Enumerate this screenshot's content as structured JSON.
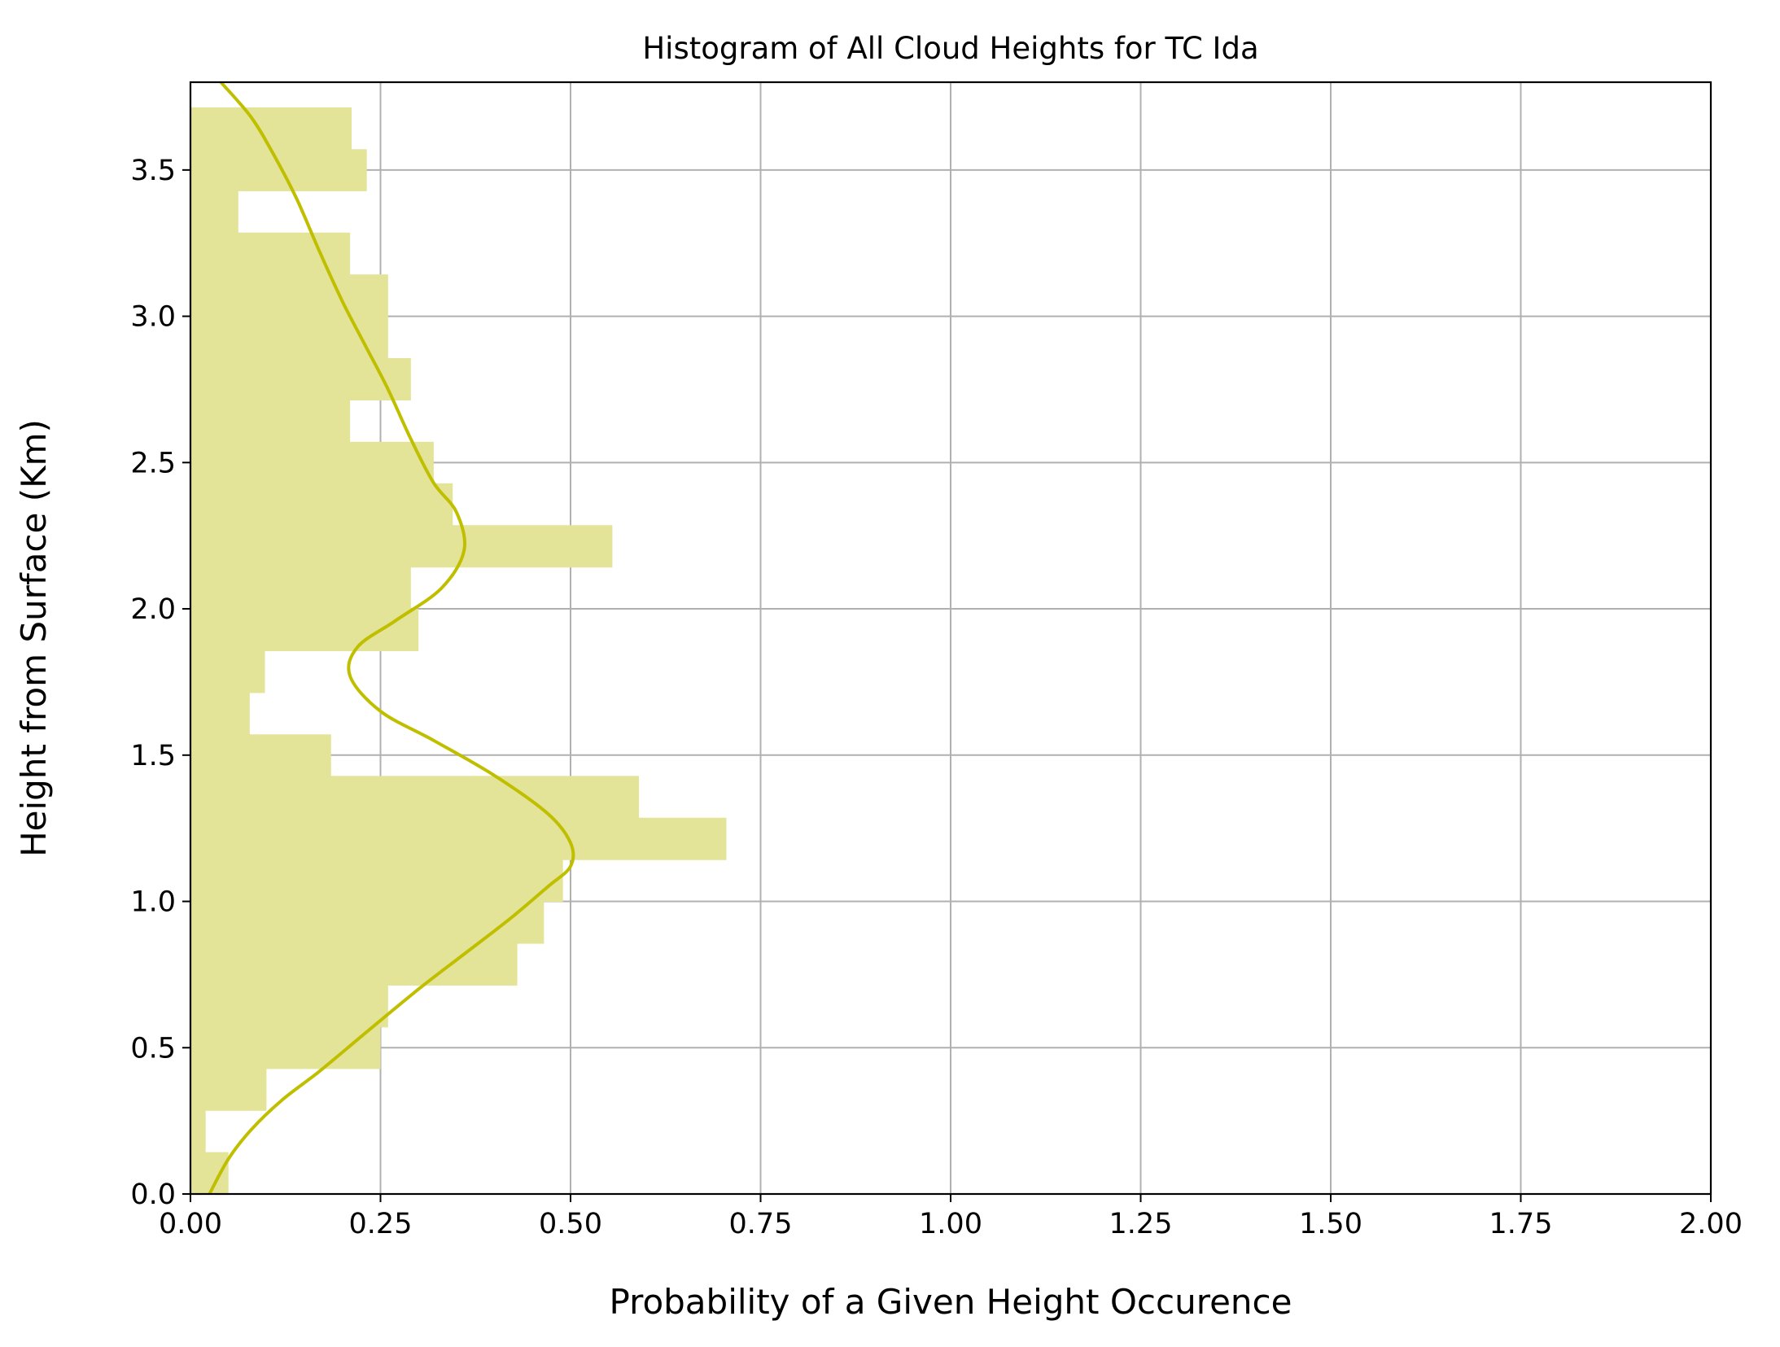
{
  "chart_data": {
    "type": "bar",
    "orientation": "horizontal",
    "title": "Histogram of All Cloud Heights for TC Ida",
    "xlabel": "Probability of a Given Height Occurence",
    "ylabel": "Height from Surface (Km)",
    "xlim": [
      0.0,
      2.0
    ],
    "ylim": [
      0.0,
      3.8
    ],
    "xticks": [
      "0.00",
      "0.25",
      "0.50",
      "0.75",
      "1.00",
      "1.25",
      "1.50",
      "1.75",
      "2.00"
    ],
    "yticks": [
      "0.0",
      "0.5",
      "1.0",
      "1.5",
      "2.0",
      "2.5",
      "3.0",
      "3.5"
    ],
    "grid": true,
    "colors": {
      "bars": "#e3e498",
      "kde": "#bfbf00"
    },
    "bins": [
      {
        "low": 0.0,
        "high": 0.143,
        "value": 0.05
      },
      {
        "low": 0.143,
        "high": 0.286,
        "value": 0.02
      },
      {
        "low": 0.286,
        "high": 0.429,
        "value": 0.1
      },
      {
        "low": 0.429,
        "high": 0.571,
        "value": 0.25
      },
      {
        "low": 0.571,
        "high": 0.714,
        "value": 0.26
      },
      {
        "low": 0.714,
        "high": 0.857,
        "value": 0.43
      },
      {
        "low": 0.857,
        "high": 1.0,
        "value": 0.465
      },
      {
        "low": 1.0,
        "high": 1.143,
        "value": 0.49
      },
      {
        "low": 1.143,
        "high": 1.286,
        "value": 0.705
      },
      {
        "low": 1.286,
        "high": 1.429,
        "value": 0.59
      },
      {
        "low": 1.429,
        "high": 1.571,
        "value": 0.185
      },
      {
        "low": 1.571,
        "high": 1.714,
        "value": 0.078
      },
      {
        "low": 1.714,
        "high": 1.857,
        "value": 0.098
      },
      {
        "low": 1.857,
        "high": 2.0,
        "value": 0.3
      },
      {
        "low": 2.0,
        "high": 2.143,
        "value": 0.29
      },
      {
        "low": 2.143,
        "high": 2.286,
        "value": 0.555
      },
      {
        "low": 2.286,
        "high": 2.429,
        "value": 0.345
      },
      {
        "low": 2.429,
        "high": 2.571,
        "value": 0.32
      },
      {
        "low": 2.571,
        "high": 2.714,
        "value": 0.21
      },
      {
        "low": 2.714,
        "high": 2.857,
        "value": 0.29
      },
      {
        "low": 2.857,
        "high": 3.0,
        "value": 0.26
      },
      {
        "low": 3.0,
        "high": 3.143,
        "value": 0.26
      },
      {
        "low": 3.143,
        "high": 3.286,
        "value": 0.21
      },
      {
        "low": 3.286,
        "high": 3.429,
        "value": 0.063
      },
      {
        "low": 3.429,
        "high": 3.571,
        "value": 0.232
      },
      {
        "low": 3.571,
        "high": 3.714,
        "value": 0.212
      }
    ],
    "kde_curve": {
      "x": [
        0.025,
        0.05,
        0.08,
        0.12,
        0.17,
        0.23,
        0.3,
        0.36,
        0.42,
        0.47,
        0.5,
        0.5,
        0.47,
        0.4,
        0.32,
        0.25,
        0.21,
        0.22,
        0.27,
        0.33,
        0.36,
        0.35,
        0.32,
        0.29,
        0.26,
        0.23,
        0.2,
        0.17,
        0.14,
        0.11,
        0.08,
        0.04
      ],
      "y": [
        0.0,
        0.12,
        0.22,
        0.32,
        0.42,
        0.55,
        0.7,
        0.82,
        0.94,
        1.05,
        1.12,
        1.2,
        1.3,
        1.43,
        1.55,
        1.65,
        1.77,
        1.87,
        1.96,
        2.07,
        2.2,
        2.33,
        2.43,
        2.58,
        2.75,
        2.9,
        3.05,
        3.22,
        3.4,
        3.55,
        3.68,
        3.8
      ]
    }
  }
}
